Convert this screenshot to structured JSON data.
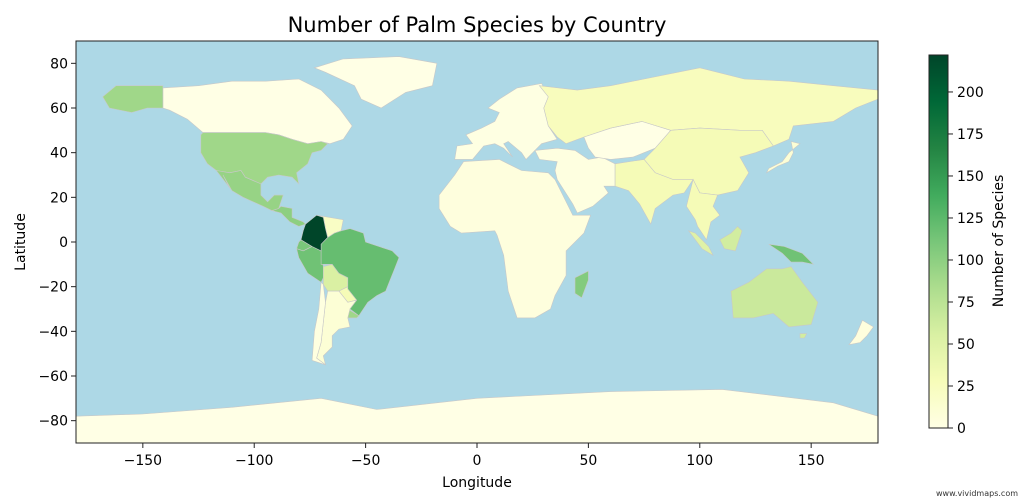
{
  "figure": {
    "title": "Number of Palm Species by Country",
    "watermark": "www.vividmaps.com"
  },
  "map": {
    "xlabel": "Longitude",
    "ylabel": "Latitude",
    "xlim": [
      -180,
      180
    ],
    "ylim": [
      -90,
      90
    ],
    "xticks": [
      -150,
      -100,
      -50,
      0,
      50,
      100,
      150
    ],
    "xtick_labels": [
      "−150",
      "−100",
      "−50",
      "0",
      "50",
      "100",
      "150"
    ],
    "yticks": [
      80,
      60,
      40,
      20,
      0,
      -20,
      -40,
      -60,
      -80
    ],
    "ytick_labels": [
      "80",
      "60",
      "40",
      "20",
      "0",
      "−20",
      "−40",
      "−60",
      "−80"
    ],
    "ocean_color": "#add8e6",
    "border_color": "#c8c8c8"
  },
  "colorbar": {
    "label": "Number of Species",
    "range": [
      0,
      222
    ],
    "ticks": [
      0,
      25,
      50,
      75,
      100,
      125,
      150,
      175,
      200
    ],
    "tick_labels": [
      "0",
      "25",
      "50",
      "75",
      "100",
      "125",
      "150",
      "175",
      "200"
    ],
    "colormap": "YlGn",
    "stops": [
      "#ffffe5",
      "#f7fcb9",
      "#d9f0a3",
      "#addd8e",
      "#78c679",
      "#41ab5d",
      "#238443",
      "#006837",
      "#004529"
    ]
  },
  "chart_data": {
    "type": "choropleth",
    "value_label": "Number of Species",
    "regions": [
      {
        "name": "Colombia",
        "value": 222
      },
      {
        "name": "Brazil",
        "value": 120
      },
      {
        "name": "Peru",
        "value": 115
      },
      {
        "name": "Ecuador",
        "value": 110
      },
      {
        "name": "Venezuela",
        "value": 20
      },
      {
        "name": "Bolivia",
        "value": 55
      },
      {
        "name": "Mexico",
        "value": 95
      },
      {
        "name": "Central America",
        "value": 100
      },
      {
        "name": "United States",
        "value": 90
      },
      {
        "name": "Alaska",
        "value": 90
      },
      {
        "name": "Canada",
        "value": 0
      },
      {
        "name": "Argentina",
        "value": 10
      },
      {
        "name": "Chile",
        "value": 3
      },
      {
        "name": "Paraguay",
        "value": 30
      },
      {
        "name": "Uruguay",
        "value": 90
      },
      {
        "name": "Madagascar",
        "value": 105
      },
      {
        "name": "Africa",
        "value": 5
      },
      {
        "name": "Europe",
        "value": 2
      },
      {
        "name": "Russia",
        "value": 25
      },
      {
        "name": "Middle East",
        "value": 3
      },
      {
        "name": "Central Asia",
        "value": 0
      },
      {
        "name": "India",
        "value": 30
      },
      {
        "name": "China",
        "value": 30
      },
      {
        "name": "Southeast Asia",
        "value": 30
      },
      {
        "name": "Borneo",
        "value": 60
      },
      {
        "name": "Sumatra",
        "value": 50
      },
      {
        "name": "Papua New Guinea",
        "value": 115
      },
      {
        "name": "Australia",
        "value": 65
      },
      {
        "name": "Tasmania",
        "value": 60
      },
      {
        "name": "New Zealand",
        "value": 5
      },
      {
        "name": "Japan",
        "value": 10
      },
      {
        "name": "Greenland",
        "value": 0
      },
      {
        "name": "Antarctica",
        "value": 0
      }
    ]
  }
}
